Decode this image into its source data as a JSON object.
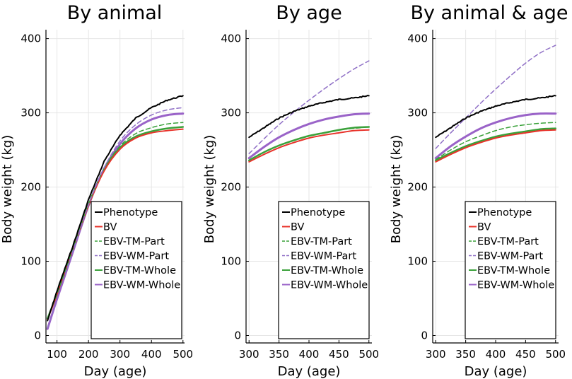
{
  "figure": {
    "ylabel": "Body weight (kg)",
    "xlabel": "Day (age)"
  },
  "legend": [
    {
      "key": "phenotype",
      "label": "Phenotype"
    },
    {
      "key": "bv",
      "label": "BV"
    },
    {
      "key": "ebv_tm_part",
      "label": "EBV-TM-Part"
    },
    {
      "key": "ebv_wm_part",
      "label": "EBV-WM-Part"
    },
    {
      "key": "ebv_tm_whole",
      "label": "EBV-TM-Whole"
    },
    {
      "key": "ebv_wm_whole",
      "label": "EBV-WM-Whole"
    }
  ],
  "series_styles": {
    "phenotype": {
      "color": "#000000",
      "dashed": false,
      "width": 2
    },
    "bv": {
      "color": "#e8322a",
      "dashed": false,
      "width": 2
    },
    "ebv_tm_part": {
      "color": "#3aa13a",
      "dashed": true,
      "width": 1.5
    },
    "ebv_wm_part": {
      "color": "#8f6fc6",
      "dashed": true,
      "width": 1.5
    },
    "ebv_tm_whole": {
      "color": "#3aa13a",
      "dashed": false,
      "width": 2.5
    },
    "ebv_wm_whole": {
      "color": "#9a63c8",
      "dashed": false,
      "width": 3
    }
  },
  "chart_data": [
    {
      "type": "line",
      "title": "By animal",
      "xlabel": "Day (age)",
      "ylabel": "Body weight (kg)",
      "xlim": [
        65,
        505
      ],
      "ylim": [
        -10,
        412
      ],
      "xticks": [
        100,
        200,
        300,
        400,
        500
      ],
      "yticks": [
        0,
        100,
        200,
        300,
        400
      ],
      "grid": true,
      "legend_position": "bottom-right",
      "series": [
        {
          "key": "phenotype",
          "name": "Phenotype",
          "x": [
            70,
            100,
            150,
            200,
            250,
            300,
            350,
            400,
            450,
            500
          ],
          "y": [
            20,
            60,
            120,
            183,
            235,
            270,
            293,
            307,
            317,
            323
          ]
        },
        {
          "key": "bv",
          "name": "BV",
          "x": [
            70,
            100,
            150,
            200,
            250,
            300,
            350,
            400,
            450,
            500
          ],
          "y": [
            22,
            55,
            115,
            175,
            222,
            251,
            266,
            273,
            276,
            278
          ]
        },
        {
          "key": "ebv_tm_part",
          "name": "EBV-TM-Part",
          "x": [
            70,
            100,
            150,
            200,
            250,
            300,
            350,
            400,
            450,
            500
          ],
          "y": [
            23,
            56,
            116,
            177,
            225,
            255,
            272,
            280,
            285,
            287
          ]
        },
        {
          "key": "ebv_wm_part",
          "name": "EBV-WM-Part",
          "x": [
            70,
            100,
            150,
            200,
            250,
            300,
            350,
            400,
            450,
            500
          ],
          "y": [
            10,
            50,
            113,
            176,
            226,
            262,
            284,
            297,
            304,
            307
          ]
        },
        {
          "key": "ebv_tm_whole",
          "name": "EBV-TM-Whole",
          "x": [
            70,
            100,
            150,
            200,
            250,
            300,
            350,
            400,
            450,
            500
          ],
          "y": [
            23,
            56,
            116,
            176,
            223,
            253,
            268,
            275,
            279,
            281
          ]
        },
        {
          "key": "ebv_wm_whole",
          "name": "EBV-WM-Whole",
          "x": [
            70,
            100,
            150,
            200,
            250,
            300,
            350,
            400,
            450,
            500
          ],
          "y": [
            9,
            49,
            112,
            175,
            225,
            258,
            279,
            291,
            297,
            299
          ]
        }
      ]
    },
    {
      "type": "line",
      "title": "By age",
      "xlabel": "Day (age)",
      "ylabel": "Body weight (kg)",
      "xlim": [
        295,
        505
      ],
      "ylim": [
        -10,
        412
      ],
      "xticks": [
        300,
        350,
        400,
        450,
        500
      ],
      "yticks": [
        0,
        100,
        200,
        300,
        400
      ],
      "grid": true,
      "legend_position": "bottom-right",
      "series": [
        {
          "key": "phenotype",
          "name": "Phenotype",
          "x": [
            300,
            325,
            350,
            375,
            400,
            425,
            450,
            475,
            500
          ],
          "y": [
            267,
            280,
            293,
            302,
            309,
            314,
            318,
            320,
            323
          ]
        },
        {
          "key": "bv",
          "name": "BV",
          "x": [
            300,
            325,
            350,
            375,
            400,
            425,
            450,
            475,
            500
          ],
          "y": [
            234,
            244,
            253,
            260,
            266,
            270,
            273,
            276,
            277
          ]
        },
        {
          "key": "ebv_tm_part",
          "name": "EBV-TM-Part",
          "x": [
            300,
            325,
            350,
            375,
            400,
            425,
            450,
            475,
            500
          ],
          "y": [
            236,
            247,
            256,
            263,
            269,
            273,
            277,
            279,
            281
          ]
        },
        {
          "key": "ebv_wm_part",
          "name": "EBV-WM-Part",
          "x": [
            300,
            325,
            350,
            375,
            400,
            425,
            450,
            475,
            500
          ],
          "y": [
            245,
            265,
            284,
            301,
            317,
            332,
            346,
            359,
            370
          ]
        },
        {
          "key": "ebv_tm_whole",
          "name": "EBV-TM-Whole",
          "x": [
            300,
            325,
            350,
            375,
            400,
            425,
            450,
            475,
            500
          ],
          "y": [
            236,
            247,
            256,
            263,
            269,
            273,
            277,
            280,
            281
          ]
        },
        {
          "key": "ebv_wm_whole",
          "name": "EBV-WM-Whole",
          "x": [
            300,
            325,
            350,
            375,
            400,
            425,
            450,
            475,
            500
          ],
          "y": [
            239,
            254,
            267,
            277,
            285,
            291,
            295,
            298,
            299
          ]
        }
      ]
    },
    {
      "type": "line",
      "title": "By animal & age",
      "xlabel": "Day (age)",
      "ylabel": "Body weight (kg)",
      "xlim": [
        295,
        505
      ],
      "ylim": [
        -10,
        412
      ],
      "xticks": [
        300,
        350,
        400,
        450,
        500
      ],
      "yticks": [
        0,
        100,
        200,
        300,
        400
      ],
      "grid": true,
      "legend_position": "bottom-right",
      "series": [
        {
          "key": "phenotype",
          "name": "Phenotype",
          "x": [
            300,
            325,
            350,
            375,
            400,
            425,
            450,
            475,
            500
          ],
          "y": [
            267,
            280,
            293,
            302,
            309,
            314,
            318,
            320,
            323
          ]
        },
        {
          "key": "bv",
          "name": "BV",
          "x": [
            300,
            325,
            350,
            375,
            400,
            425,
            450,
            475,
            500
          ],
          "y": [
            234,
            244,
            253,
            260,
            266,
            270,
            273,
            276,
            277
          ]
        },
        {
          "key": "ebv_tm_part",
          "name": "EBV-TM-Part",
          "x": [
            300,
            325,
            350,
            375,
            400,
            425,
            450,
            475,
            500
          ],
          "y": [
            237,
            250,
            261,
            269,
            276,
            281,
            284,
            286,
            287
          ]
        },
        {
          "key": "ebv_wm_part",
          "name": "EBV-WM-Part",
          "x": [
            300,
            325,
            350,
            375,
            400,
            425,
            450,
            475,
            500
          ],
          "y": [
            252,
            273,
            293,
            313,
            332,
            350,
            367,
            381,
            391
          ]
        },
        {
          "key": "ebv_tm_whole",
          "name": "EBV-TM-Whole",
          "x": [
            300,
            325,
            350,
            375,
            400,
            425,
            450,
            475,
            500
          ],
          "y": [
            236,
            246,
            255,
            262,
            268,
            272,
            275,
            278,
            279
          ]
        },
        {
          "key": "ebv_wm_whole",
          "name": "EBV-WM-Whole",
          "x": [
            300,
            325,
            350,
            375,
            400,
            425,
            450,
            475,
            500
          ],
          "y": [
            239,
            255,
            268,
            279,
            287,
            293,
            297,
            299,
            299
          ]
        }
      ]
    }
  ]
}
